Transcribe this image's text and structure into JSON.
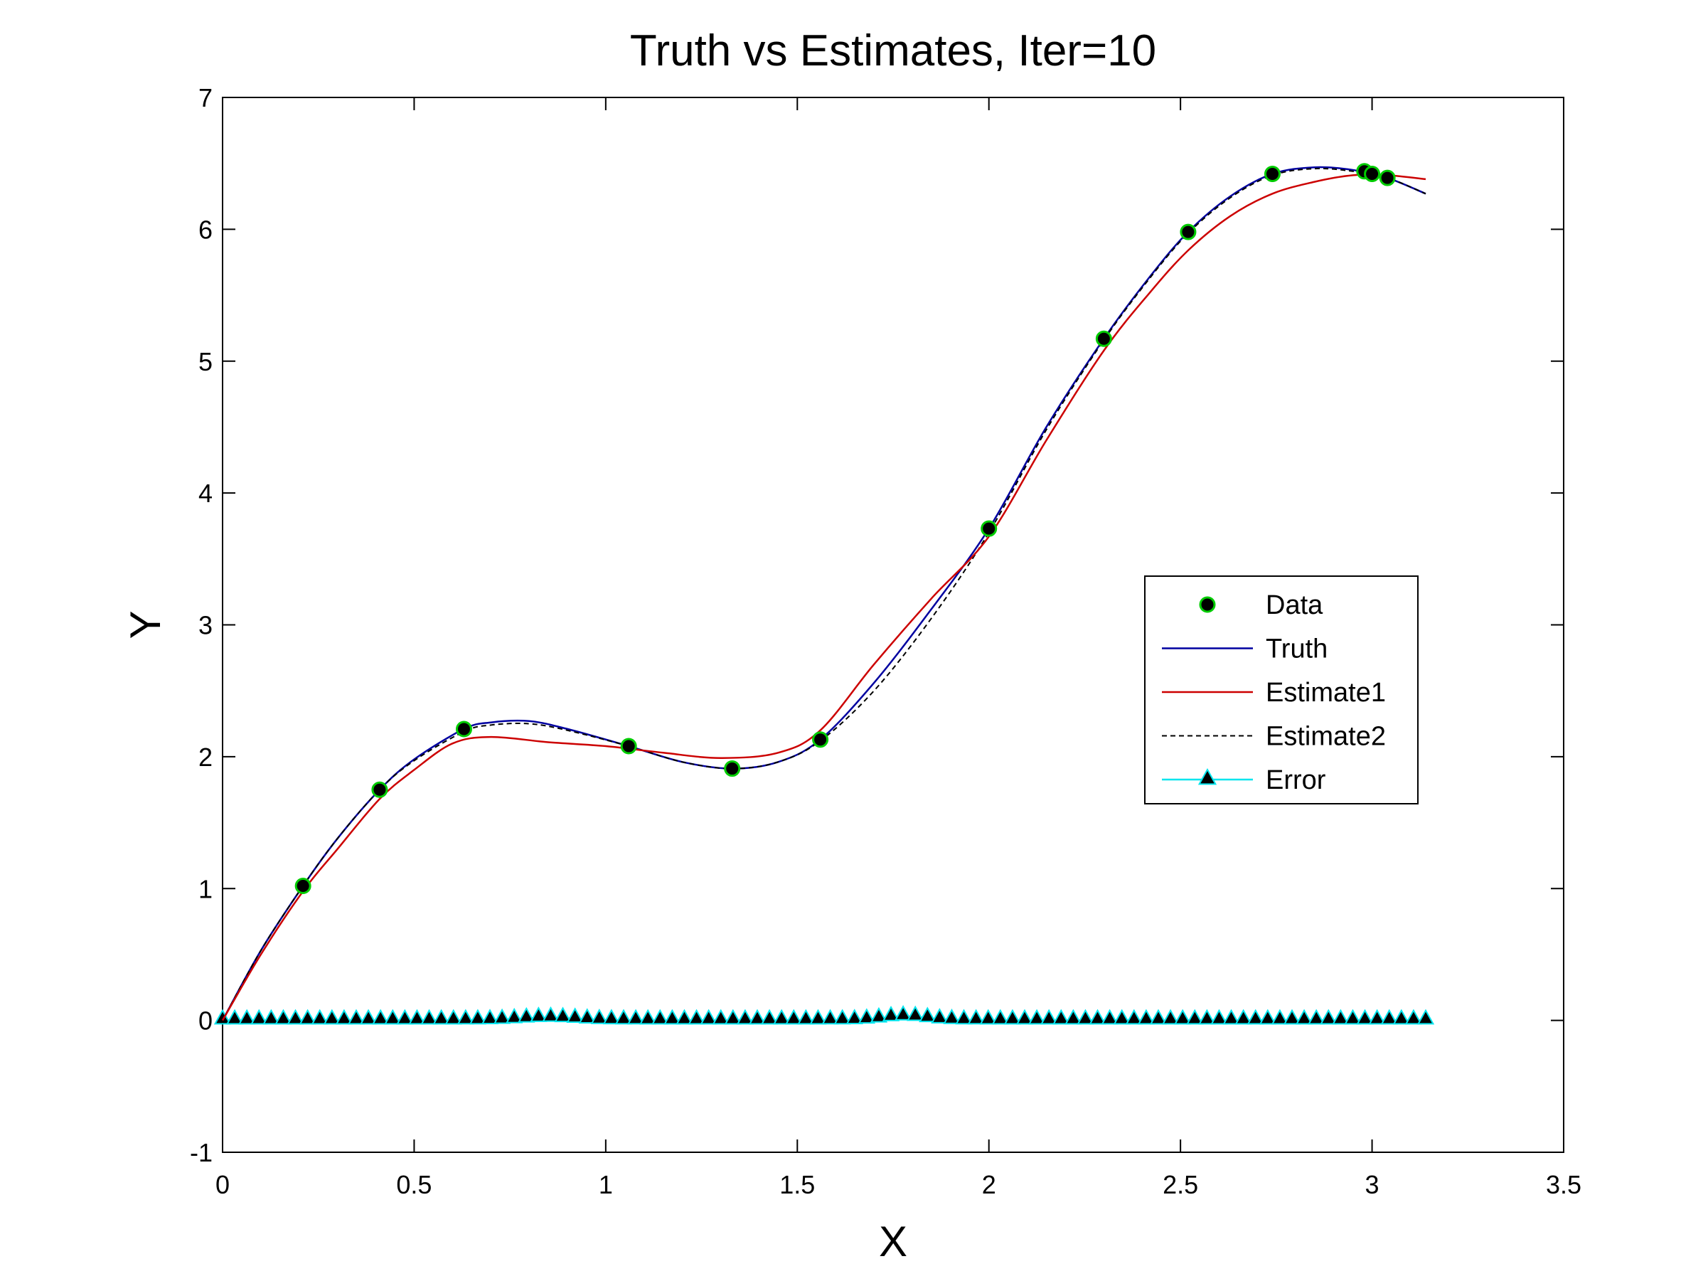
{
  "chart_data": {
    "type": "line",
    "title": "Truth vs Estimates, Iter=10",
    "xlabel": "X",
    "ylabel": "Y",
    "xlim": [
      0,
      3.5
    ],
    "ylim": [
      -1,
      7
    ],
    "xticks": [
      0,
      0.5,
      1,
      1.5,
      2,
      2.5,
      3,
      3.5
    ],
    "xtick_labels": [
      "0",
      "0.5",
      "1",
      "1.5",
      "2",
      "2.5",
      "3",
      "3.5"
    ],
    "yticks": [
      -1,
      0,
      1,
      2,
      3,
      4,
      5,
      6,
      7
    ],
    "ytick_labels": [
      "-1",
      "0",
      "1",
      "2",
      "3",
      "4",
      "5",
      "6",
      "7"
    ],
    "grid": false,
    "legend_position": "right",
    "series": [
      {
        "name": "Data",
        "style": "markers",
        "color": "#000000",
        "edge_color": "#00cc00",
        "x": [
          0.21,
          0.41,
          0.63,
          1.06,
          1.33,
          1.56,
          2.0,
          2.3,
          2.52,
          2.74,
          2.98,
          3.0,
          3.04
        ],
        "y": [
          1.02,
          1.75,
          2.21,
          2.08,
          1.91,
          2.13,
          3.73,
          5.17,
          5.98,
          6.42,
          6.44,
          6.42,
          6.39
        ]
      },
      {
        "name": "Truth",
        "style": "solid",
        "color": "#0000a0",
        "x": [
          0,
          0.1,
          0.21,
          0.3,
          0.41,
          0.5,
          0.63,
          0.7,
          0.8,
          0.9,
          1.06,
          1.2,
          1.33,
          1.45,
          1.56,
          1.7,
          1.85,
          2.0,
          2.15,
          2.3,
          2.42,
          2.52,
          2.63,
          2.74,
          2.85,
          2.95,
          3.04,
          3.14
        ],
        "y": [
          0,
          0.53,
          1.02,
          1.38,
          1.75,
          1.98,
          2.21,
          2.26,
          2.27,
          2.21,
          2.08,
          1.96,
          1.91,
          1.96,
          2.13,
          2.56,
          3.12,
          3.73,
          4.5,
          5.17,
          5.64,
          5.98,
          6.25,
          6.42,
          6.47,
          6.45,
          6.39,
          6.27
        ]
      },
      {
        "name": "Estimate1",
        "style": "solid",
        "color": "#cc0000",
        "x": [
          0,
          0.1,
          0.21,
          0.3,
          0.41,
          0.5,
          0.6,
          0.7,
          0.85,
          1.0,
          1.15,
          1.3,
          1.45,
          1.56,
          1.7,
          1.85,
          2.0,
          2.15,
          2.3,
          2.42,
          2.52,
          2.63,
          2.74,
          2.85,
          2.95,
          3.04,
          3.14
        ],
        "y": [
          0,
          0.5,
          0.98,
          1.3,
          1.68,
          1.9,
          2.1,
          2.15,
          2.11,
          2.08,
          2.03,
          1.99,
          2.03,
          2.2,
          2.7,
          3.2,
          3.67,
          4.4,
          5.08,
          5.52,
          5.84,
          6.1,
          6.27,
          6.36,
          6.41,
          6.41,
          6.38
        ]
      },
      {
        "name": "Estimate2",
        "style": "dashed",
        "color": "#000000",
        "x": [
          0,
          0.1,
          0.21,
          0.3,
          0.41,
          0.5,
          0.63,
          0.7,
          0.8,
          0.9,
          1.06,
          1.2,
          1.33,
          1.45,
          1.56,
          1.7,
          1.85,
          2.0,
          2.15,
          2.3,
          2.42,
          2.52,
          2.63,
          2.74,
          2.85,
          2.95,
          3.04,
          3.14
        ],
        "y": [
          0,
          0.53,
          1.02,
          1.38,
          1.75,
          1.97,
          2.19,
          2.24,
          2.25,
          2.2,
          2.08,
          1.96,
          1.91,
          1.96,
          2.12,
          2.5,
          3.05,
          3.7,
          4.48,
          5.16,
          5.63,
          5.97,
          6.24,
          6.41,
          6.46,
          6.44,
          6.39,
          6.27
        ]
      },
      {
        "name": "Error",
        "style": "line-triangles",
        "color": "#00e5ee",
        "marker_color": "#000000",
        "x_start": 0,
        "x_end": 3.14,
        "n_points": 100,
        "y_bumps": [
          {
            "x": 0.85,
            "height": 0.02,
            "width": 0.1
          },
          {
            "x": 1.78,
            "height": 0.03,
            "width": 0.08
          }
        ]
      }
    ]
  }
}
